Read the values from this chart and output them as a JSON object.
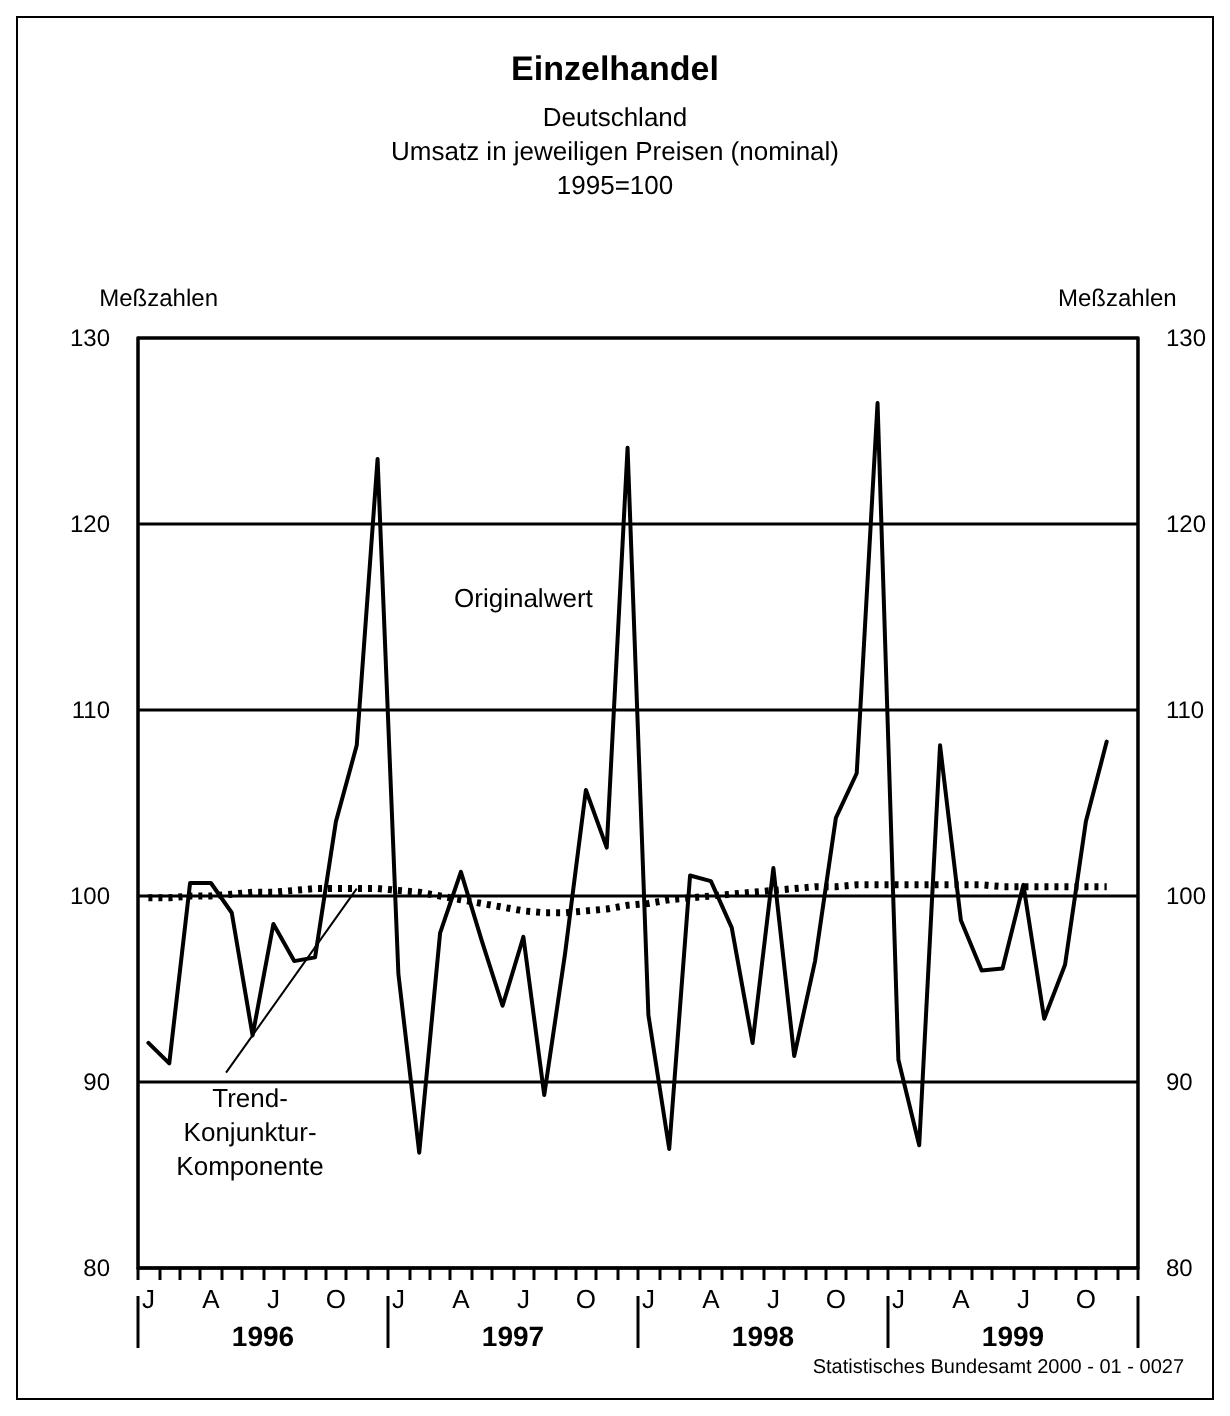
{
  "chart_data": {
    "type": "line",
    "title": "Einzelhandel",
    "subtitle": "Deutschland\nUmsatz in jeweiligen Preisen (nominal)\n1995=100",
    "ylabel": "Meßzahlen",
    "y2label": "Meßzahlen",
    "categories": [
      "J",
      null,
      null,
      "A",
      null,
      null,
      "J",
      null,
      null,
      "O",
      null,
      null,
      "J",
      null,
      null,
      "A",
      null,
      null,
      "J",
      null,
      null,
      "O",
      null,
      null,
      "J",
      null,
      null,
      "A",
      null,
      null,
      "J",
      null,
      null,
      "O",
      null,
      null,
      "J",
      null,
      null,
      "A",
      null,
      null,
      "J",
      null,
      null,
      "O",
      null,
      null
    ],
    "series": [
      {
        "name": "Originalwert",
        "color": "#000000",
        "line_style": "solid",
        "values": [
          92.1,
          91.0,
          100.7,
          100.7,
          99.1,
          92.5,
          98.5,
          96.5,
          96.7,
          104.0,
          108.1,
          123.5,
          95.8,
          86.2,
          98.0,
          101.3,
          97.6,
          94.1,
          97.8,
          89.3,
          96.9,
          105.7,
          102.6,
          124.1,
          93.6,
          86.4,
          101.1,
          100.8,
          98.3,
          92.1,
          101.5,
          91.4,
          96.5,
          104.2,
          106.6,
          126.5,
          91.2,
          86.6,
          108.1,
          98.7,
          96.0,
          96.1,
          100.6,
          93.4,
          96.3,
          104.0,
          108.3,
          null
        ]
      },
      {
        "name": "Trend-\nKonjunktur-\nKomponente",
        "color": "#000000",
        "line_style": "dotted",
        "values": [
          99.9,
          99.9,
          100.0,
          100.0,
          100.1,
          100.2,
          100.2,
          100.3,
          100.4,
          100.4,
          100.4,
          100.4,
          100.3,
          100.2,
          100.0,
          99.8,
          99.6,
          99.4,
          99.2,
          99.1,
          99.1,
          99.2,
          99.3,
          99.5,
          99.6,
          99.8,
          99.9,
          100.0,
          100.1,
          100.2,
          100.3,
          100.4,
          100.5,
          100.5,
          100.6,
          100.6,
          100.6,
          100.6,
          100.6,
          100.6,
          100.6,
          100.5,
          100.5,
          100.5,
          100.5,
          100.5,
          100.5,
          null
        ]
      }
    ],
    "ylim": [
      80,
      130
    ],
    "yticks": [
      80,
      90,
      100,
      110,
      120,
      130
    ],
    "y2lim": [
      80,
      130
    ],
    "y2ticks": [
      80,
      90,
      100,
      110,
      120,
      130
    ],
    "grid": "y",
    "marker": "none",
    "legend": false,
    "annotations": [
      "1996",
      "1997",
      "1998",
      "1999",
      "Statistisches Bundesamt 2000 - 01 - 0027"
    ]
  }
}
